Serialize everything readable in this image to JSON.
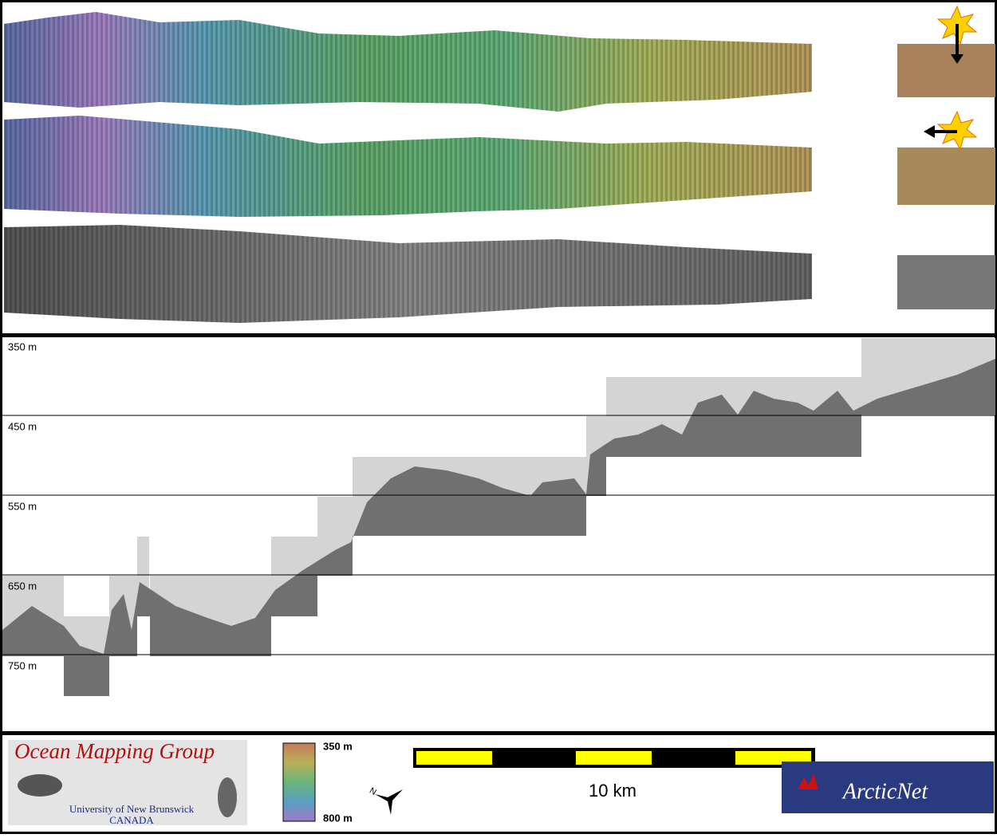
{
  "profile": {
    "depth_labels": [
      "350 m",
      "450 m",
      "550 m",
      "650 m",
      "750 m"
    ]
  },
  "legend": {
    "top": "350 m",
    "bottom": "800 m"
  },
  "scale_bar": {
    "label": "10 km"
  },
  "compass": {
    "label": "N"
  },
  "logos": {
    "omg_title": "Ocean Mapping Group",
    "omg_university": "University of New Brunswick",
    "omg_country": "CANADA",
    "arcticnet": "ArcticNet"
  }
}
